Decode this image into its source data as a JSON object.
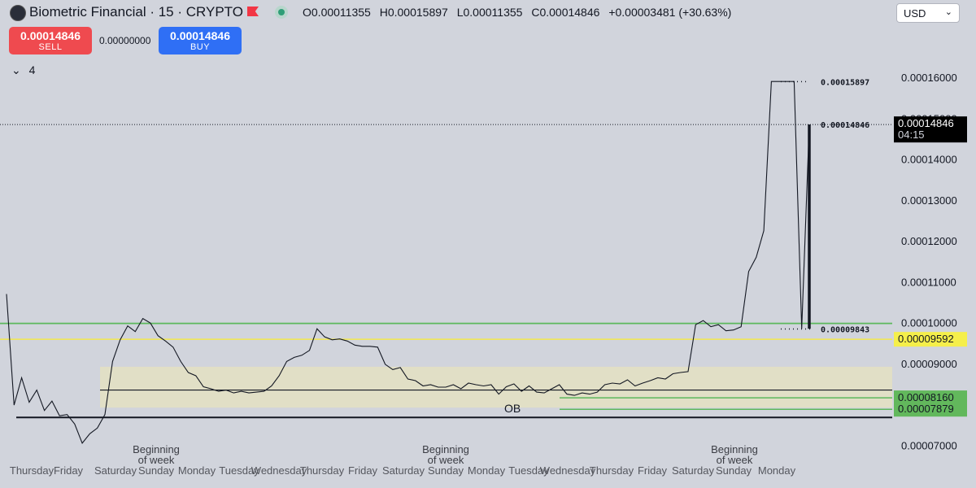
{
  "header": {
    "title": "Biometric Financial · 15 · CRYPTO",
    "open_label": "O",
    "open": "0.00011355",
    "high_label": "H",
    "high": "0.00015897",
    "low_label": "L",
    "low": "0.00011355",
    "close_label": "C",
    "close": "0.00014846",
    "change": "+0.00003481 (+30.63%)",
    "currency": "USD"
  },
  "trade": {
    "sell_price": "0.00014846",
    "sell_label": "SELL",
    "spread": "0.00000000",
    "buy_price": "0.00014846",
    "buy_label": "BUY"
  },
  "indicators": {
    "count": "4"
  },
  "colors": {
    "sell": "#ef4a4f",
    "buy": "#2f6ff5",
    "green_line": "#5cb85c",
    "yellow_line": "#f2e84b",
    "ob_zone": "#e2e0c3"
  },
  "chart_data": {
    "type": "line",
    "ylim": [
      6.55e-05,
      0.000167
    ],
    "y_ticks": [
      "0.00016000",
      "0.00015000",
      "0.00014000",
      "0.00013000",
      "0.00012000",
      "0.00011000",
      "0.00010000",
      "0.00009000",
      "0.00007000"
    ],
    "x_ticks": [
      "Thursday",
      "Friday",
      "Saturday",
      "Sunday",
      "Monday",
      "Tuesday",
      "Wednesday",
      "Thursday",
      "Friday",
      "Saturday",
      "Sunday",
      "Monday",
      "Tuesday",
      "Wednesday",
      "Thursday",
      "Friday",
      "Saturday",
      "Sunday",
      "Monday"
    ],
    "week_annotations": [
      "Beginning\nof week",
      "Beginning\nof week",
      "Beginning\nof week"
    ],
    "ob_label": "OB",
    "price_labels": [
      {
        "text": "0.00014846",
        "sub": "04:15",
        "value": 0.00014846,
        "style": "dark"
      },
      {
        "text": "0.00009592",
        "value": 9.592e-05,
        "style": "yellow"
      },
      {
        "text": "0.00008160",
        "value": 8.16e-05,
        "style": "green"
      },
      {
        "text": "0.00007879",
        "value": 7.879e-05,
        "style": "green"
      }
    ],
    "inline_labels": [
      {
        "text": "0.00015897",
        "value": 0.00015897
      },
      {
        "text": "0.00014846",
        "value": 0.00014846
      },
      {
        "text": "0.00009843",
        "value": 9.843e-05
      }
    ],
    "levels": {
      "green_resistance": 9.98e-05,
      "yellow": 9.592e-05,
      "ob_top": 8.92e-05,
      "ob_bottom": 7.92e-05,
      "ob_mid": 8.35e-05,
      "black_support": 7.68e-05
    },
    "series": [
      {
        "values": [
          [
            0,
            0.000107
          ],
          [
            1,
            7.98e-05
          ],
          [
            2,
            8.65e-05
          ],
          [
            3,
            8.05e-05
          ],
          [
            4,
            8.35e-05
          ],
          [
            5,
            7.85e-05
          ],
          [
            6,
            8.08e-05
          ],
          [
            7,
            7.72e-05
          ],
          [
            8,
            7.75e-05
          ],
          [
            9,
            7.52e-05
          ],
          [
            10,
            7.05e-05
          ],
          [
            11,
            7.28e-05
          ],
          [
            12,
            7.42e-05
          ],
          [
            13,
            7.75e-05
          ],
          [
            14,
            9.05e-05
          ],
          [
            15,
            9.58e-05
          ],
          [
            16,
            9.92e-05
          ],
          [
            17,
            9.78e-05
          ],
          [
            18,
            0.000101
          ],
          [
            19,
            9.99e-05
          ],
          [
            20,
            9.68e-05
          ],
          [
            21,
            9.55e-05
          ],
          [
            22,
            9.4e-05
          ],
          [
            23,
            9.05e-05
          ],
          [
            24,
            8.78e-05
          ],
          [
            25,
            8.7e-05
          ],
          [
            26,
            8.43e-05
          ],
          [
            27,
            8.38e-05
          ],
          [
            28,
            8.32e-05
          ],
          [
            29,
            8.35e-05
          ],
          [
            30,
            8.28e-05
          ],
          [
            31,
            8.32e-05
          ],
          [
            32,
            8.28e-05
          ],
          [
            33,
            8.3e-05
          ],
          [
            34,
            8.32e-05
          ],
          [
            35,
            8.45e-05
          ],
          [
            36,
            8.7e-05
          ],
          [
            37,
            9.05e-05
          ],
          [
            38,
            9.15e-05
          ],
          [
            39,
            9.2e-05
          ],
          [
            40,
            9.32e-05
          ],
          [
            41,
            9.85e-05
          ],
          [
            42,
            9.65e-05
          ],
          [
            43,
            9.58e-05
          ],
          [
            44,
            9.6e-05
          ],
          [
            45,
            9.55e-05
          ],
          [
            46,
            9.45e-05
          ],
          [
            47,
            9.42e-05
          ],
          [
            48,
            9.42e-05
          ],
          [
            49,
            9.4e-05
          ],
          [
            50,
            8.98e-05
          ],
          [
            51,
            8.85e-05
          ],
          [
            52,
            8.9e-05
          ],
          [
            53,
            8.62e-05
          ],
          [
            54,
            8.58e-05
          ],
          [
            55,
            8.45e-05
          ],
          [
            56,
            8.48e-05
          ],
          [
            57,
            8.42e-05
          ],
          [
            58,
            8.42e-05
          ],
          [
            59,
            8.48e-05
          ],
          [
            60,
            8.38e-05
          ],
          [
            61,
            8.52e-05
          ],
          [
            62,
            8.48e-05
          ],
          [
            63,
            8.45e-05
          ],
          [
            64,
            8.48e-05
          ],
          [
            65,
            8.25e-05
          ],
          [
            66,
            8.43e-05
          ],
          [
            67,
            8.5e-05
          ],
          [
            68,
            8.32e-05
          ],
          [
            69,
            8.45e-05
          ],
          [
            70,
            8.3e-05
          ],
          [
            71,
            8.28e-05
          ],
          [
            72,
            8.38e-05
          ],
          [
            73,
            8.48e-05
          ],
          [
            74,
            8.25e-05
          ],
          [
            75,
            8.22e-05
          ],
          [
            76,
            8.28e-05
          ],
          [
            77,
            8.25e-05
          ],
          [
            78,
            8.3e-05
          ],
          [
            79,
            8.48e-05
          ],
          [
            80,
            8.52e-05
          ],
          [
            81,
            8.5e-05
          ],
          [
            82,
            8.6e-05
          ],
          [
            83,
            8.45e-05
          ],
          [
            84,
            8.52e-05
          ],
          [
            85,
            8.58e-05
          ],
          [
            86,
            8.65e-05
          ],
          [
            87,
            8.62e-05
          ],
          [
            88,
            8.75e-05
          ],
          [
            89,
            8.78e-05
          ],
          [
            90,
            8.8e-05
          ],
          [
            91,
            9.95e-05
          ],
          [
            92,
            0.0001005
          ],
          [
            93,
            9.9e-05
          ],
          [
            94,
            9.95e-05
          ],
          [
            95,
            9.8e-05
          ],
          [
            96,
            9.82e-05
          ],
          [
            97,
            9.9e-05
          ],
          [
            98,
            0.0001125
          ],
          [
            99,
            0.000116
          ],
          [
            100,
            0.0001225
          ],
          [
            101,
            0.000159
          ],
          [
            102,
            0.000159
          ],
          [
            103,
            0.000159
          ],
          [
            104,
            0.000159
          ],
          [
            105,
            9.85e-05
          ],
          [
            106,
            0.00014846
          ]
        ]
      }
    ]
  }
}
